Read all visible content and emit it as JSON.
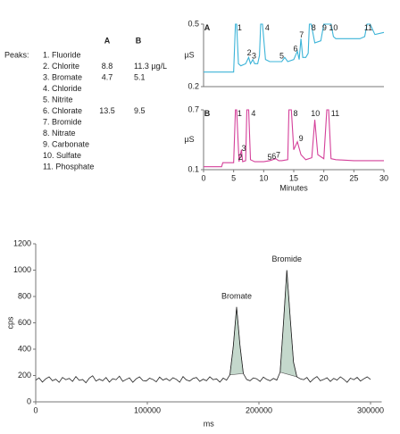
{
  "peaks_table": {
    "label": "Peaks:",
    "columns": [
      "A",
      "B"
    ],
    "rows": [
      {
        "name": "1. Fluoride"
      },
      {
        "name": "2. Chlorite",
        "A": 8.8,
        "B": "11.3 µg/L"
      },
      {
        "name": "3. Bromate",
        "A": 4.7,
        "B": 5.1
      },
      {
        "name": "4. Chloride"
      },
      {
        "name": "5. Nitrite"
      },
      {
        "name": "6. Chlorate",
        "A": 13.5,
        "B": 9.5
      },
      {
        "name": "7. Bromide"
      },
      {
        "name": "8. Nitrate"
      },
      {
        "name": "9. Carbonate"
      },
      {
        "name": "10. Sulfate"
      },
      {
        "name": "11. Phosphate"
      }
    ]
  },
  "chart_data": [
    {
      "type": "line",
      "ylabel": "µS",
      "color": "#3cb4d8",
      "xlim": [
        0,
        30
      ],
      "ylim": [
        0.2,
        0.5
      ],
      "yticks": [
        0.2,
        0.5
      ],
      "x": [
        0,
        2,
        4,
        5,
        5.3,
        5.5,
        5.8,
        6.2,
        7,
        7.5,
        7.8,
        8.2,
        8.5,
        9,
        9.3,
        9.5,
        9.8,
        10.3,
        11,
        12,
        13,
        13.5,
        14,
        15,
        15.6,
        15.9,
        16.2,
        16.5,
        17,
        17.4,
        17.6,
        17.9,
        18.5,
        19.5,
        20,
        20.3,
        20.8,
        21.2,
        21.6,
        22,
        24,
        26,
        26.8,
        27.2,
        27.7,
        28.5,
        30
      ],
      "values": [
        0.27,
        0.27,
        0.27,
        0.27,
        0.5,
        0.5,
        0.31,
        0.3,
        0.31,
        0.34,
        0.31,
        0.33,
        0.31,
        0.31,
        0.35,
        0.5,
        0.5,
        0.33,
        0.32,
        0.32,
        0.32,
        0.34,
        0.32,
        0.33,
        0.37,
        0.33,
        0.43,
        0.34,
        0.34,
        0.36,
        0.5,
        0.5,
        0.41,
        0.42,
        0.5,
        0.5,
        0.5,
        0.5,
        0.44,
        0.43,
        0.43,
        0.43,
        0.44,
        0.5,
        0.5,
        0.45,
        0.46
      ],
      "annotations": [
        {
          "text": "A",
          "x": 0.6,
          "y": 0.48,
          "bold": true
        },
        {
          "text": "1",
          "x": 6,
          "y": 0.48
        },
        {
          "text": "2",
          "x": 7.6,
          "y": 0.36
        },
        {
          "text": "3",
          "x": 8.4,
          "y": 0.345
        },
        {
          "text": "4",
          "x": 10.6,
          "y": 0.48
        },
        {
          "text": "5",
          "x": 13,
          "y": 0.345
        },
        {
          "text": "6",
          "x": 15.3,
          "y": 0.38
        },
        {
          "text": "7",
          "x": 16.3,
          "y": 0.445
        },
        {
          "text": "8",
          "x": 18.3,
          "y": 0.48
        },
        {
          "text": "9",
          "x": 20.1,
          "y": 0.48
        },
        {
          "text": "10",
          "x": 21.6,
          "y": 0.48
        },
        {
          "text": "11",
          "x": 27.4,
          "y": 0.48
        }
      ]
    },
    {
      "type": "line",
      "xlabel": "Minutes",
      "ylabel": "µS",
      "color": "#d4409a",
      "xlim": [
        0,
        30
      ],
      "ylim": [
        0.1,
        0.7
      ],
      "yticks": [
        0.1,
        0.7
      ],
      "xticks": [
        0,
        5,
        10,
        15,
        20,
        25,
        30
      ],
      "x": [
        0,
        3,
        3.2,
        4.5,
        5,
        5.3,
        5.5,
        5.9,
        6.1,
        6.3,
        6.5,
        7,
        7.2,
        7.5,
        7.8,
        8.5,
        10,
        11,
        11.5,
        12,
        12.5,
        13,
        14,
        14.2,
        14.6,
        15,
        15.6,
        16.2,
        17,
        18,
        18.5,
        19,
        20,
        20.5,
        20.8,
        21.2,
        22,
        25,
        30
      ],
      "values": [
        0.13,
        0.13,
        0.17,
        0.17,
        0.17,
        0.7,
        0.7,
        0.18,
        0.24,
        0.3,
        0.18,
        0.19,
        0.7,
        0.7,
        0.2,
        0.18,
        0.18,
        0.19,
        0.2,
        0.21,
        0.19,
        0.19,
        0.2,
        0.7,
        0.7,
        0.3,
        0.38,
        0.25,
        0.2,
        0.22,
        0.6,
        0.25,
        0.21,
        0.7,
        0.7,
        0.21,
        0.2,
        0.19,
        0.19
      ],
      "annotations": [
        {
          "text": "B",
          "x": 0.6,
          "y": 0.66,
          "bold": true
        },
        {
          "text": "1",
          "x": 6,
          "y": 0.66
        },
        {
          "text": "2",
          "x": 6.1,
          "y": 0.22
        },
        {
          "text": "3",
          "x": 6.7,
          "y": 0.31
        },
        {
          "text": "4",
          "x": 8.3,
          "y": 0.66
        },
        {
          "text": "5",
          "x": 11,
          "y": 0.22
        },
        {
          "text": "6",
          "x": 11.7,
          "y": 0.23
        },
        {
          "text": "7",
          "x": 12.4,
          "y": 0.24
        },
        {
          "text": "8",
          "x": 15.3,
          "y": 0.66
        },
        {
          "text": "9",
          "x": 16.2,
          "y": 0.41
        },
        {
          "text": "10",
          "x": 18.6,
          "y": 0.66
        },
        {
          "text": "11",
          "x": 21.9,
          "y": 0.66
        }
      ]
    },
    {
      "type": "line",
      "xlabel": "ms",
      "ylabel": "cps",
      "color": "#222222",
      "fill_color": "#c4d8cc",
      "xlim": [
        0,
        310000
      ],
      "ylim": [
        0,
        1200
      ],
      "yticks": [
        0,
        200,
        400,
        600,
        800,
        1000,
        1200
      ],
      "xticks": [
        0,
        100000,
        200000,
        300000
      ],
      "x": [
        0,
        3000,
        6000,
        9000,
        12000,
        15000,
        18000,
        21000,
        24000,
        27000,
        30000,
        33000,
        36000,
        39000,
        42000,
        45000,
        48000,
        51000,
        54000,
        57000,
        60000,
        63000,
        66000,
        69000,
        72000,
        75000,
        78000,
        81000,
        84000,
        87000,
        90000,
        93000,
        96000,
        99000,
        102000,
        105000,
        108000,
        111000,
        114000,
        117000,
        120000,
        123000,
        126000,
        129000,
        132000,
        135000,
        138000,
        141000,
        144000,
        147000,
        150000,
        153000,
        156000,
        159000,
        162000,
        165000,
        168000,
        171000,
        174000,
        177000,
        180000,
        183000,
        186000,
        189000,
        192000,
        195000,
        198000,
        201000,
        204000,
        207000,
        210000,
        213000,
        216000,
        219000,
        222000,
        225000,
        228000,
        231000,
        234000,
        237000,
        240000,
        243000,
        246000,
        249000,
        252000,
        255000,
        258000,
        261000,
        264000,
        267000,
        270000,
        273000,
        276000,
        279000,
        282000,
        285000,
        288000,
        291000,
        294000,
        297000,
        300000
      ],
      "values": [
        165,
        182,
        150,
        175,
        190,
        160,
        172,
        148,
        185,
        168,
        178,
        155,
        192,
        163,
        170,
        145,
        180,
        198,
        158,
        172,
        160,
        185,
        150,
        176,
        168,
        195,
        155,
        170,
        182,
        148,
        175,
        190,
        162,
        158,
        180,
        170,
        152,
        188,
        165,
        177,
        160,
        183,
        171,
        149,
        192,
        166,
        158,
        178,
        185,
        155,
        172,
        160,
        190,
        168,
        175,
        150,
        180,
        165,
        205,
        420,
        720,
        430,
        215,
        170,
        160,
        182,
        175,
        155,
        188,
        170,
        160,
        178,
        165,
        225,
        600,
        1000,
        640,
        300,
        190,
        175,
        168,
        185,
        150,
        175,
        192,
        160,
        170,
        183,
        155,
        178,
        165,
        190,
        172,
        148,
        180,
        168,
        186,
        158,
        175,
        190,
        170
      ],
      "shaded_ranges": [
        [
          174000,
          186000
        ],
        [
          219000,
          234000
        ]
      ],
      "annotations": [
        {
          "text": "Bromate",
          "x": 180000,
          "y": 800
        },
        {
          "text": "Bromide",
          "x": 225000,
          "y": 1080
        }
      ]
    }
  ]
}
